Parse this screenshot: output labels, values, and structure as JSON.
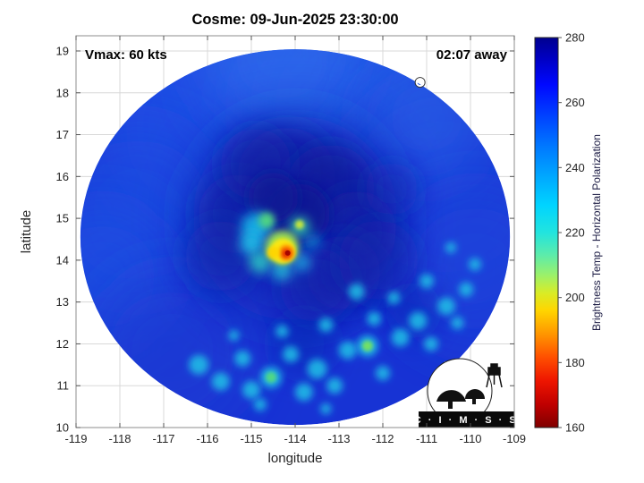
{
  "title": "Cosme: 09-Jun-2025 23:30:00",
  "annotations": {
    "vmax": "Vmax: 60 kts",
    "eta": "02:07 away"
  },
  "axes": {
    "x": {
      "label": "longitude",
      "min": -119,
      "max": -109,
      "ticks": [
        -119,
        -118,
        -117,
        -116,
        -115,
        -114,
        -113,
        -112,
        -111,
        -110,
        -109
      ]
    },
    "y": {
      "label": "latitude",
      "min": 10,
      "max": 19,
      "ticks": [
        10,
        11,
        12,
        13,
        14,
        15,
        16,
        17,
        18,
        19
      ]
    }
  },
  "colorbar": {
    "label": "Brightness Temp - Horizontal Polarization",
    "min": 160,
    "max": 280,
    "ticks": [
      280,
      260,
      240,
      220,
      200,
      180,
      160
    ],
    "gradient": [
      {
        "o": 0,
        "c": "#00008f"
      },
      {
        "o": 0.055,
        "c": "#0000c4"
      },
      {
        "o": 0.12,
        "c": "#0008ff"
      },
      {
        "o": 0.2,
        "c": "#0041ff"
      },
      {
        "o": 0.28,
        "c": "#0079ff"
      },
      {
        "o": 0.36,
        "c": "#00aaff"
      },
      {
        "o": 0.43,
        "c": "#00d4ff"
      },
      {
        "o": 0.5,
        "c": "#22e4de"
      },
      {
        "o": 0.56,
        "c": "#5feca8"
      },
      {
        "o": 0.61,
        "c": "#9cf169"
      },
      {
        "o": 0.655,
        "c": "#d9ec26"
      },
      {
        "o": 0.7,
        "c": "#ffd500"
      },
      {
        "o": 0.76,
        "c": "#ff9600"
      },
      {
        "o": 0.82,
        "c": "#ff4f00"
      },
      {
        "o": 0.88,
        "c": "#ee1500"
      },
      {
        "o": 0.94,
        "c": "#c00000"
      },
      {
        "o": 1,
        "c": "#7f0000"
      }
    ]
  },
  "marker": {
    "lon": -111.15,
    "lat": 18.25
  },
  "logo": {
    "text": "C · I · M · S · S"
  },
  "chart_data": {
    "type": "heatmap",
    "title": "Cosme: 09-Jun-2025 23:30:00",
    "xlabel": "longitude",
    "ylabel": "latitude",
    "xlim": [
      -119,
      -109
    ],
    "ylim": [
      10,
      19.4
    ],
    "colorbar_label": "Brightness Temp - Horizontal Polarization",
    "colorbar_range_K": [
      160,
      280
    ],
    "storm": {
      "name": "Cosme",
      "datetime": "09-Jun-2025 23:30:00",
      "vmax_kts": 60,
      "time_offset": "02:07 away"
    },
    "base_color": "#1733d4",
    "background_temp_K": 260,
    "swath": {
      "center_lon": -114.0,
      "center_lat": 14.55,
      "radius_deg_lon": 4.9,
      "radius_deg_lat": 4.49
    },
    "features": [
      {
        "feature": "storm core region, darker blue (~265-275 K)",
        "lon": -113.9,
        "lat": 15.1
      },
      {
        "feature": "deep convection cold spot, red/orange/yellow (~165-205 K)",
        "lon": -114.2,
        "lat": 14.2
      },
      {
        "feature": "curved convective band, cyan (~220-240 K)",
        "lon": -114.7,
        "lat": 14.4
      },
      {
        "feature": "scattered convective cells south and southeast of center, cyan/green (~220-240 K)",
        "lon": -112.5,
        "lat": 12.0
      },
      {
        "feature": "white circular position marker",
        "lon": -111.15,
        "lat": 18.25
      }
    ],
    "blobs": [
      {
        "lon": -115.8,
        "lat": 17.2,
        "r": 130,
        "c": "#1e4fe6",
        "b": 30,
        "a": 0.85
      },
      {
        "lon": -112.6,
        "lat": 17.6,
        "r": 120,
        "c": "#2157e8",
        "b": 30,
        "a": 0.8
      },
      {
        "lon": -117.6,
        "lat": 15.2,
        "r": 100,
        "c": "#1c49e0",
        "b": 30,
        "a": 0.7
      },
      {
        "lon": -110.6,
        "lat": 15.8,
        "r": 120,
        "c": "#1a40da",
        "b": 30,
        "a": 0.7
      },
      {
        "lon": -114.3,
        "lat": 18.9,
        "r": 90,
        "c": "#2e6fec",
        "b": 30,
        "a": 0.65
      },
      {
        "lon": -118.4,
        "lat": 13.6,
        "r": 80,
        "c": "#2152e4",
        "b": 30,
        "a": 0.6
      },
      {
        "lon": -111.0,
        "lat": 17.4,
        "r": 70,
        "c": "#2a62e8",
        "b": 30,
        "a": 0.55
      },
      {
        "lon": -109.9,
        "lat": 13.8,
        "r": 90,
        "c": "#1c44dc",
        "b": 30,
        "a": 0.6
      },
      {
        "lon": -116.8,
        "lat": 11.8,
        "r": 90,
        "c": "#1a3cd4",
        "b": 30,
        "a": 0.6
      },
      {
        "lon": -114.0,
        "lat": 15.0,
        "r": 115,
        "c": "#0f27b4",
        "b": 30,
        "a": 0.75
      },
      {
        "lon": -114.2,
        "lat": 16.0,
        "r": 55,
        "c": "#0c1fa6",
        "b": 16,
        "a": 0.8
      },
      {
        "lon": -115.3,
        "lat": 15.1,
        "r": 45,
        "c": "#0c1fa6",
        "b": 16,
        "a": 0.75
      },
      {
        "lon": -113.2,
        "lat": 15.7,
        "r": 50,
        "c": "#0a1a9a",
        "b": 16,
        "a": 0.8
      },
      {
        "lon": -112.6,
        "lat": 14.7,
        "r": 45,
        "c": "#0c1fa6",
        "b": 16,
        "a": 0.75
      },
      {
        "lon": -112.9,
        "lat": 13.7,
        "r": 42,
        "c": "#0e23aa",
        "b": 16,
        "a": 0.65
      },
      {
        "lon": -115.7,
        "lat": 14.1,
        "r": 40,
        "c": "#0e23aa",
        "b": 16,
        "a": 0.6
      },
      {
        "lon": -114.9,
        "lat": 16.3,
        "r": 40,
        "c": "#0d20a4",
        "b": 16,
        "a": 0.6
      },
      {
        "lon": -113.9,
        "lat": 15.1,
        "r": 34,
        "c": "#091894",
        "b": 8,
        "a": 0.9
      },
      {
        "lon": -114.5,
        "lat": 15.5,
        "r": 28,
        "c": "#091894",
        "b": 8,
        "a": 0.8
      },
      {
        "lon": -113.5,
        "lat": 13.4,
        "r": 42,
        "c": "#0d20a8",
        "b": 16,
        "a": 0.55
      },
      {
        "lon": -112.1,
        "lat": 14.0,
        "r": 45,
        "c": "#0e23aa",
        "b": 16,
        "a": 0.5
      },
      {
        "lon": -111.8,
        "lat": 15.7,
        "r": 30,
        "c": "#0f25ac",
        "b": 16,
        "a": 0.5
      },
      {
        "lon": -113.8,
        "lat": 12.0,
        "r": 35,
        "c": "#0e23aa",
        "b": 16,
        "a": 0.4
      },
      {
        "lon": -111.3,
        "lat": 12.8,
        "r": 32,
        "c": "#0e23aa",
        "b": 16,
        "a": 0.35
      },
      {
        "lon": -114.9,
        "lat": 14.8,
        "r": 16,
        "c": "#18b4e8",
        "b": 6,
        "a": 0.9
      },
      {
        "lon": -115.0,
        "lat": 14.4,
        "r": 13,
        "c": "#22c6ea",
        "b": 6,
        "a": 0.85
      },
      {
        "lon": -114.8,
        "lat": 13.95,
        "r": 12,
        "c": "#2ecfc4",
        "b": 6,
        "a": 0.85
      },
      {
        "lon": -114.3,
        "lat": 13.75,
        "r": 11,
        "c": "#28c8da",
        "b": 6,
        "a": 0.8
      },
      {
        "lon": -113.85,
        "lat": 13.95,
        "r": 10,
        "c": "#20b6e2",
        "b": 6,
        "a": 0.75
      },
      {
        "lon": -113.9,
        "lat": 14.8,
        "r": 11,
        "c": "#3ad8a8",
        "b": 6,
        "a": 0.85
      },
      {
        "lon": -114.65,
        "lat": 14.95,
        "r": 9,
        "c": "#55e07c",
        "b": 4,
        "a": 0.9
      },
      {
        "lon": -113.6,
        "lat": 14.45,
        "r": 9,
        "c": "#18a8e0",
        "b": 6,
        "a": 0.6
      },
      {
        "lon": -116.2,
        "lat": 11.5,
        "r": 11,
        "c": "#1cc2e6",
        "b": 4,
        "a": 0.85
      },
      {
        "lon": -115.7,
        "lat": 11.1,
        "r": 10,
        "c": "#1cc2e6",
        "b": 4,
        "a": 0.85
      },
      {
        "lon": -115.2,
        "lat": 11.65,
        "r": 9,
        "c": "#1cc2e6",
        "b": 4,
        "a": 0.85
      },
      {
        "lon": -115.0,
        "lat": 10.9,
        "r": 10,
        "c": "#1cc2e6",
        "b": 4,
        "a": 0.85
      },
      {
        "lon": -114.55,
        "lat": 11.2,
        "r": 12,
        "c": "#1cc2e6",
        "b": 4,
        "a": 0.85
      },
      {
        "lon": -114.55,
        "lat": 11.2,
        "r": 6,
        "c": "#54dc7c",
        "b": 2,
        "a": 0.9
      },
      {
        "lon": -114.1,
        "lat": 11.75,
        "r": 9,
        "c": "#1cc2e6",
        "b": 4,
        "a": 0.85
      },
      {
        "lon": -113.8,
        "lat": 10.85,
        "r": 10,
        "c": "#1cc2e6",
        "b": 4,
        "a": 0.85
      },
      {
        "lon": -113.5,
        "lat": 11.4,
        "r": 11,
        "c": "#1cc2e6",
        "b": 4,
        "a": 0.85
      },
      {
        "lon": -113.1,
        "lat": 11.0,
        "r": 9,
        "c": "#1cc2e6",
        "b": 4,
        "a": 0.85
      },
      {
        "lon": -112.8,
        "lat": 11.85,
        "r": 10,
        "c": "#1cc2e6",
        "b": 4,
        "a": 0.85
      },
      {
        "lon": -112.35,
        "lat": 11.95,
        "r": 12,
        "c": "#1cc2e6",
        "b": 4,
        "a": 0.85
      },
      {
        "lon": -112.35,
        "lat": 11.95,
        "r": 6,
        "c": "#7ae65a",
        "b": 2,
        "a": 0.9
      },
      {
        "lon": -112.0,
        "lat": 11.3,
        "r": 8,
        "c": "#1cc2e6",
        "b": 4,
        "a": 0.85
      },
      {
        "lon": -111.6,
        "lat": 12.15,
        "r": 10,
        "c": "#1cc2e6",
        "b": 4,
        "a": 0.85
      },
      {
        "lon": -111.2,
        "lat": 12.55,
        "r": 10,
        "c": "#1cc2e6",
        "b": 4,
        "a": 0.85
      },
      {
        "lon": -110.9,
        "lat": 12.0,
        "r": 8,
        "c": "#1cc2e6",
        "b": 4,
        "a": 0.85
      },
      {
        "lon": -110.55,
        "lat": 12.9,
        "r": 10,
        "c": "#1cc2e6",
        "b": 4,
        "a": 0.85
      },
      {
        "lon": -110.3,
        "lat": 12.5,
        "r": 7,
        "c": "#1cc2e6",
        "b": 4,
        "a": 0.85
      },
      {
        "lon": -110.1,
        "lat": 13.3,
        "r": 8,
        "c": "#1cc2e6",
        "b": 4,
        "a": 0.85
      },
      {
        "lon": -111.0,
        "lat": 13.5,
        "r": 8,
        "c": "#1cc2e6",
        "b": 4,
        "a": 0.85
      },
      {
        "lon": -112.6,
        "lat": 13.25,
        "r": 9,
        "c": "#1cc2e6",
        "b": 4,
        "a": 0.85
      },
      {
        "lon": -113.3,
        "lat": 12.45,
        "r": 8,
        "c": "#1cc2e6",
        "b": 4,
        "a": 0.85
      },
      {
        "lon": -114.3,
        "lat": 12.3,
        "r": 7,
        "c": "#1cc2e6",
        "b": 4,
        "a": 0.85
      },
      {
        "lon": -115.4,
        "lat": 12.2,
        "r": 6,
        "c": "#1cc2e6",
        "b": 4,
        "a": 0.85
      },
      {
        "lon": -109.9,
        "lat": 13.9,
        "r": 7,
        "c": "#1cc2e6",
        "b": 4,
        "a": 0.85
      },
      {
        "lon": -110.45,
        "lat": 14.3,
        "r": 6,
        "c": "#1cc2e6",
        "b": 4,
        "a": 0.85
      },
      {
        "lon": -114.8,
        "lat": 10.55,
        "r": 7,
        "c": "#1cc2e6",
        "b": 4,
        "a": 0.85
      },
      {
        "lon": -113.3,
        "lat": 10.45,
        "r": 6,
        "c": "#1cc2e6",
        "b": 4,
        "a": 0.85
      },
      {
        "lon": -111.75,
        "lat": 13.1,
        "r": 7,
        "c": "#1cc2e6",
        "b": 4,
        "a": 0.85
      },
      {
        "lon": -112.2,
        "lat": 12.6,
        "r": 8,
        "c": "#1cc2e6",
        "b": 4,
        "a": 0.85
      },
      {
        "lon": -114.3,
        "lat": 14.3,
        "r": 19,
        "c": "#a6ef4e",
        "b": 4,
        "a": 0.9
      },
      {
        "lon": -114.28,
        "lat": 14.22,
        "r": 14,
        "c": "#ffe80a",
        "b": 2,
        "a": 0.95
      },
      {
        "lon": -114.2,
        "lat": 14.18,
        "r": 9,
        "c": "#ff9400",
        "b": 2,
        "a": 0.95
      },
      {
        "lon": -114.2,
        "lat": 14.16,
        "r": 5.5,
        "c": "#e62c00",
        "b": 2,
        "a": 0.95
      },
      {
        "lon": -114.17,
        "lat": 14.17,
        "r": 3,
        "c": "#9e0000",
        "b": 0,
        "a": 0.9
      },
      {
        "lon": -114.5,
        "lat": 14.18,
        "r": 7,
        "c": "#ffd400",
        "b": 2,
        "a": 0.9
      },
      {
        "lon": -113.9,
        "lat": 14.85,
        "r": 5,
        "c": "#d8ee30",
        "b": 2,
        "a": 0.9
      }
    ]
  }
}
